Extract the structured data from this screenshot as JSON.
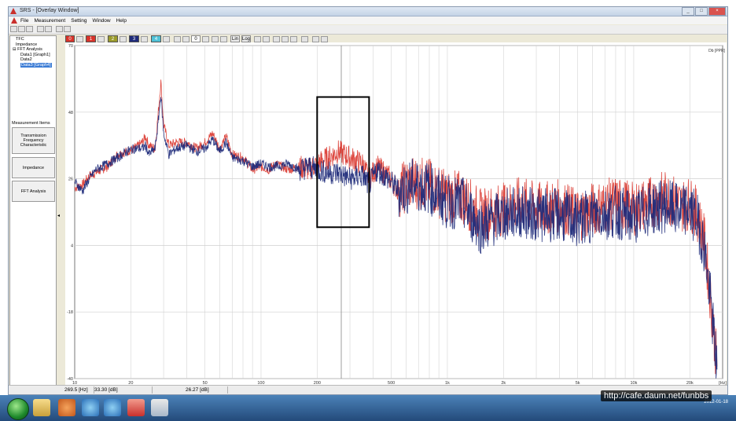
{
  "window": {
    "title": "SRS - [Overlay Window]",
    "controls": [
      "_",
      "□",
      "×"
    ]
  },
  "menu": [
    "File",
    "Measurement",
    "Setting",
    "Window",
    "Help"
  ],
  "tree": {
    "items": [
      {
        "label": "TFC",
        "indent": 1
      },
      {
        "label": "Impedance",
        "indent": 1
      },
      {
        "label": "FFT Analysis",
        "indent": 0
      },
      {
        "label": "Data1 [Graph1]",
        "indent": 2
      },
      {
        "label": "Data2",
        "indent": 2
      },
      {
        "label": "Data3 [Graph4]",
        "indent": 2,
        "selected": true
      }
    ]
  },
  "measurement_items": {
    "label": "Measurement Items",
    "buttons": [
      "Transmission Frequency Characteristic",
      "Impedance",
      "FFT Analysis"
    ]
  },
  "graph_toolbar": {
    "channels": [
      {
        "label": "0",
        "color": "#d9342b"
      },
      {
        "label": "1",
        "color": "#d9342b"
      },
      {
        "label": "2",
        "color": "#9b9b2b"
      },
      {
        "label": "3",
        "color": "#1f2b7a"
      },
      {
        "label": "4",
        "color": "#4fc1d6"
      }
    ],
    "value_box": "0",
    "lin_label": "Lin",
    "log_label": "Log"
  },
  "unit_label": "Db [PPR]",
  "status": {
    "freq": "269.5 [Hz]",
    "level1": "33.30 [dB]",
    "level2": "26.27 [dB]"
  },
  "watermark": "http://cafe.daum.net/funbbs",
  "tray": {
    "time": "",
    "date": "2012-01-18"
  },
  "chart_data": {
    "type": "line",
    "x_scale": "log",
    "xlim": [
      10,
      30000
    ],
    "ylim": [
      -40,
      70
    ],
    "x_ticks": [
      {
        "v": 10,
        "label": "10"
      },
      {
        "v": 20,
        "label": "20"
      },
      {
        "v": 50,
        "label": "50"
      },
      {
        "v": 100,
        "label": "100"
      },
      {
        "v": 200,
        "label": "200"
      },
      {
        "v": 500,
        "label": "500"
      },
      {
        "v": 1000,
        "label": "1k"
      },
      {
        "v": 2000,
        "label": "2k"
      },
      {
        "v": 5000,
        "label": "5k"
      },
      {
        "v": 10000,
        "label": "10k"
      },
      {
        "v": 20000,
        "label": "20k"
      },
      {
        "v": 30000,
        "label": "[Hz]"
      }
    ],
    "y_ticks": [
      70,
      48,
      26,
      4,
      -18,
      -40
    ],
    "cursor_x": 269.5,
    "highlight": {
      "x": [
        200,
        380
      ],
      "y": [
        10,
        53
      ]
    },
    "series": [
      {
        "color": "#d9342b",
        "points": [
          [
            10,
            23
          ],
          [
            11,
            24
          ],
          [
            12,
            27
          ],
          [
            13,
            28
          ],
          [
            15,
            30
          ],
          [
            17,
            34
          ],
          [
            19,
            35
          ],
          [
            21,
            36
          ],
          [
            23,
            38
          ],
          [
            24,
            40
          ],
          [
            25,
            37
          ],
          [
            27,
            36
          ],
          [
            28,
            47
          ],
          [
            29,
            58
          ],
          [
            30,
            44
          ],
          [
            32,
            37
          ],
          [
            35,
            38
          ],
          [
            40,
            38
          ],
          [
            45,
            36
          ],
          [
            50,
            38
          ],
          [
            55,
            41
          ],
          [
            60,
            36
          ],
          [
            65,
            40
          ],
          [
            70,
            34
          ],
          [
            80,
            33
          ],
          [
            90,
            29
          ],
          [
            100,
            30
          ],
          [
            110,
            29
          ],
          [
            120,
            31
          ],
          [
            140,
            29
          ],
          [
            160,
            30
          ],
          [
            180,
            29
          ],
          [
            200,
            31
          ],
          [
            230,
            33
          ],
          [
            260,
            35
          ],
          [
            300,
            33
          ],
          [
            350,
            31
          ],
          [
            380,
            26
          ],
          [
            420,
            30
          ],
          [
            480,
            27
          ],
          [
            550,
            22
          ],
          [
            650,
            25
          ],
          [
            800,
            24
          ],
          [
            1000,
            20
          ],
          [
            1200,
            20
          ],
          [
            1500,
            14
          ],
          [
            2000,
            16
          ],
          [
            2500,
            18
          ],
          [
            3000,
            16
          ],
          [
            4000,
            17
          ],
          [
            5000,
            14
          ],
          [
            6000,
            16
          ],
          [
            8000,
            18
          ],
          [
            10000,
            16
          ],
          [
            12000,
            18
          ],
          [
            15000,
            20
          ],
          [
            18000,
            17
          ],
          [
            20000,
            18
          ],
          [
            22000,
            14
          ],
          [
            24000,
            5
          ],
          [
            26000,
            -15
          ],
          [
            28000,
            -36
          ]
        ]
      },
      {
        "color": "#1f2b7a",
        "points": [
          [
            10,
            25
          ],
          [
            11,
            22
          ],
          [
            12,
            26
          ],
          [
            13,
            29
          ],
          [
            15,
            31
          ],
          [
            17,
            33
          ],
          [
            19,
            35
          ],
          [
            21,
            36
          ],
          [
            23,
            36
          ],
          [
            24,
            37
          ],
          [
            25,
            34
          ],
          [
            27,
            36
          ],
          [
            28,
            44
          ],
          [
            29,
            54
          ],
          [
            30,
            41
          ],
          [
            32,
            34
          ],
          [
            35,
            36
          ],
          [
            40,
            37
          ],
          [
            45,
            35
          ],
          [
            50,
            36
          ],
          [
            55,
            39
          ],
          [
            60,
            35
          ],
          [
            65,
            38
          ],
          [
            70,
            33
          ],
          [
            80,
            32
          ],
          [
            90,
            30
          ],
          [
            100,
            31
          ],
          [
            110,
            30
          ],
          [
            120,
            30
          ],
          [
            140,
            31
          ],
          [
            160,
            29
          ],
          [
            180,
            30
          ],
          [
            200,
            29
          ],
          [
            230,
            28
          ],
          [
            260,
            28
          ],
          [
            300,
            26
          ],
          [
            350,
            27
          ],
          [
            380,
            24
          ],
          [
            420,
            29
          ],
          [
            480,
            26
          ],
          [
            550,
            22
          ],
          [
            650,
            24
          ],
          [
            800,
            23
          ],
          [
            1000,
            18
          ],
          [
            1200,
            18
          ],
          [
            1500,
            10
          ],
          [
            2000,
            14
          ],
          [
            2500,
            15
          ],
          [
            3000,
            14
          ],
          [
            4000,
            14
          ],
          [
            5000,
            12
          ],
          [
            6000,
            14
          ],
          [
            8000,
            15
          ],
          [
            10000,
            13
          ],
          [
            12000,
            16
          ],
          [
            15000,
            17
          ],
          [
            18000,
            15
          ],
          [
            20000,
            16
          ],
          [
            22000,
            12
          ],
          [
            24000,
            3
          ],
          [
            26000,
            -16
          ],
          [
            28000,
            -37
          ]
        ]
      }
    ]
  }
}
